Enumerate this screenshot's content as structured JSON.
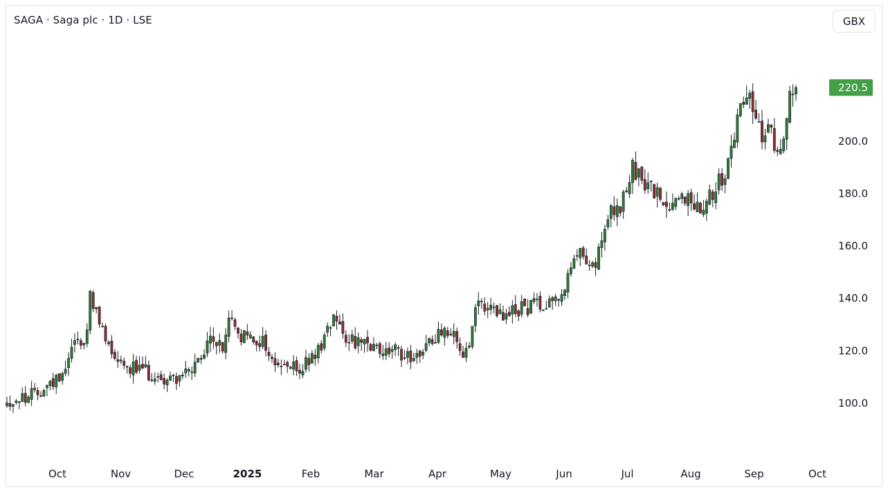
{
  "header": {
    "title": "SAGA · Saga plc · 1D · LSE",
    "currency_button": "GBX"
  },
  "chart_data": {
    "type": "candlestick",
    "title": "SAGA · Saga plc · 1D · LSE",
    "currency": "GBX",
    "ylim": [
      82,
      237
    ],
    "y_ticks": [
      "100.0",
      "120.0",
      "140.0",
      "160.0",
      "180.0",
      "200.0"
    ],
    "x_ticks": [
      {
        "label": "Oct",
        "bold": false
      },
      {
        "label": "Nov",
        "bold": false
      },
      {
        "label": "Dec",
        "bold": false
      },
      {
        "label": "2025",
        "bold": true
      },
      {
        "label": "Feb",
        "bold": false
      },
      {
        "label": "Mar",
        "bold": false
      },
      {
        "label": "Apr",
        "bold": false
      },
      {
        "label": "May",
        "bold": false
      },
      {
        "label": "Jun",
        "bold": false
      },
      {
        "label": "Jul",
        "bold": false
      },
      {
        "label": "Aug",
        "bold": false
      },
      {
        "label": "Sep",
        "bold": false
      },
      {
        "label": "Oct",
        "bold": false
      }
    ],
    "last_price": "220.5",
    "last_price_value": 220.5,
    "up_color": "#2e7d32",
    "down_color": "#8b2f2f",
    "badge_color": "#43a047",
    "trend": [
      [
        0,
        100
      ],
      [
        8,
        103
      ],
      [
        15,
        108
      ],
      [
        18,
        112
      ],
      [
        22,
        125
      ],
      [
        25,
        122
      ],
      [
        27,
        140
      ],
      [
        30,
        130
      ],
      [
        33,
        122
      ],
      [
        38,
        115
      ],
      [
        45,
        112
      ],
      [
        50,
        109
      ],
      [
        55,
        110
      ],
      [
        60,
        112
      ],
      [
        64,
        118
      ],
      [
        66,
        126
      ],
      [
        70,
        120
      ],
      [
        72,
        133
      ],
      [
        75,
        126
      ],
      [
        80,
        124
      ],
      [
        83,
        124
      ],
      [
        86,
        116
      ],
      [
        90,
        114
      ],
      [
        95,
        113
      ],
      [
        100,
        118
      ],
      [
        104,
        128
      ],
      [
        106,
        135
      ],
      [
        110,
        126
      ],
      [
        115,
        122
      ],
      [
        120,
        120
      ],
      [
        125,
        120
      ],
      [
        130,
        118
      ],
      [
        135,
        120
      ],
      [
        138,
        124
      ],
      [
        142,
        130
      ],
      [
        145,
        125
      ],
      [
        148,
        118
      ],
      [
        150,
        120
      ],
      [
        152,
        135
      ],
      [
        155,
        138
      ],
      [
        158,
        134
      ],
      [
        162,
        133
      ],
      [
        166,
        136
      ],
      [
        170,
        137
      ],
      [
        175,
        139
      ],
      [
        180,
        142
      ],
      [
        183,
        150
      ],
      [
        186,
        158
      ],
      [
        189,
        155
      ],
      [
        191,
        152
      ],
      [
        193,
        162
      ],
      [
        196,
        172
      ],
      [
        199,
        175
      ],
      [
        201,
        180
      ],
      [
        203,
        189
      ],
      [
        206,
        185
      ],
      [
        209,
        182
      ],
      [
        212,
        177
      ],
      [
        215,
        176
      ],
      [
        218,
        180
      ],
      [
        222,
        177
      ],
      [
        225,
        176
      ],
      [
        228,
        180
      ],
      [
        231,
        184
      ],
      [
        233,
        188
      ],
      [
        235,
        196
      ],
      [
        237,
        208
      ],
      [
        239,
        218
      ],
      [
        241,
        217
      ],
      [
        243,
        211
      ],
      [
        245,
        200
      ],
      [
        247,
        203
      ],
      [
        249,
        200
      ],
      [
        251,
        199
      ],
      [
        253,
        208
      ],
      [
        254,
        220
      ],
      [
        256,
        218
      ]
    ],
    "n_candles": 257,
    "random_seed": 42
  }
}
